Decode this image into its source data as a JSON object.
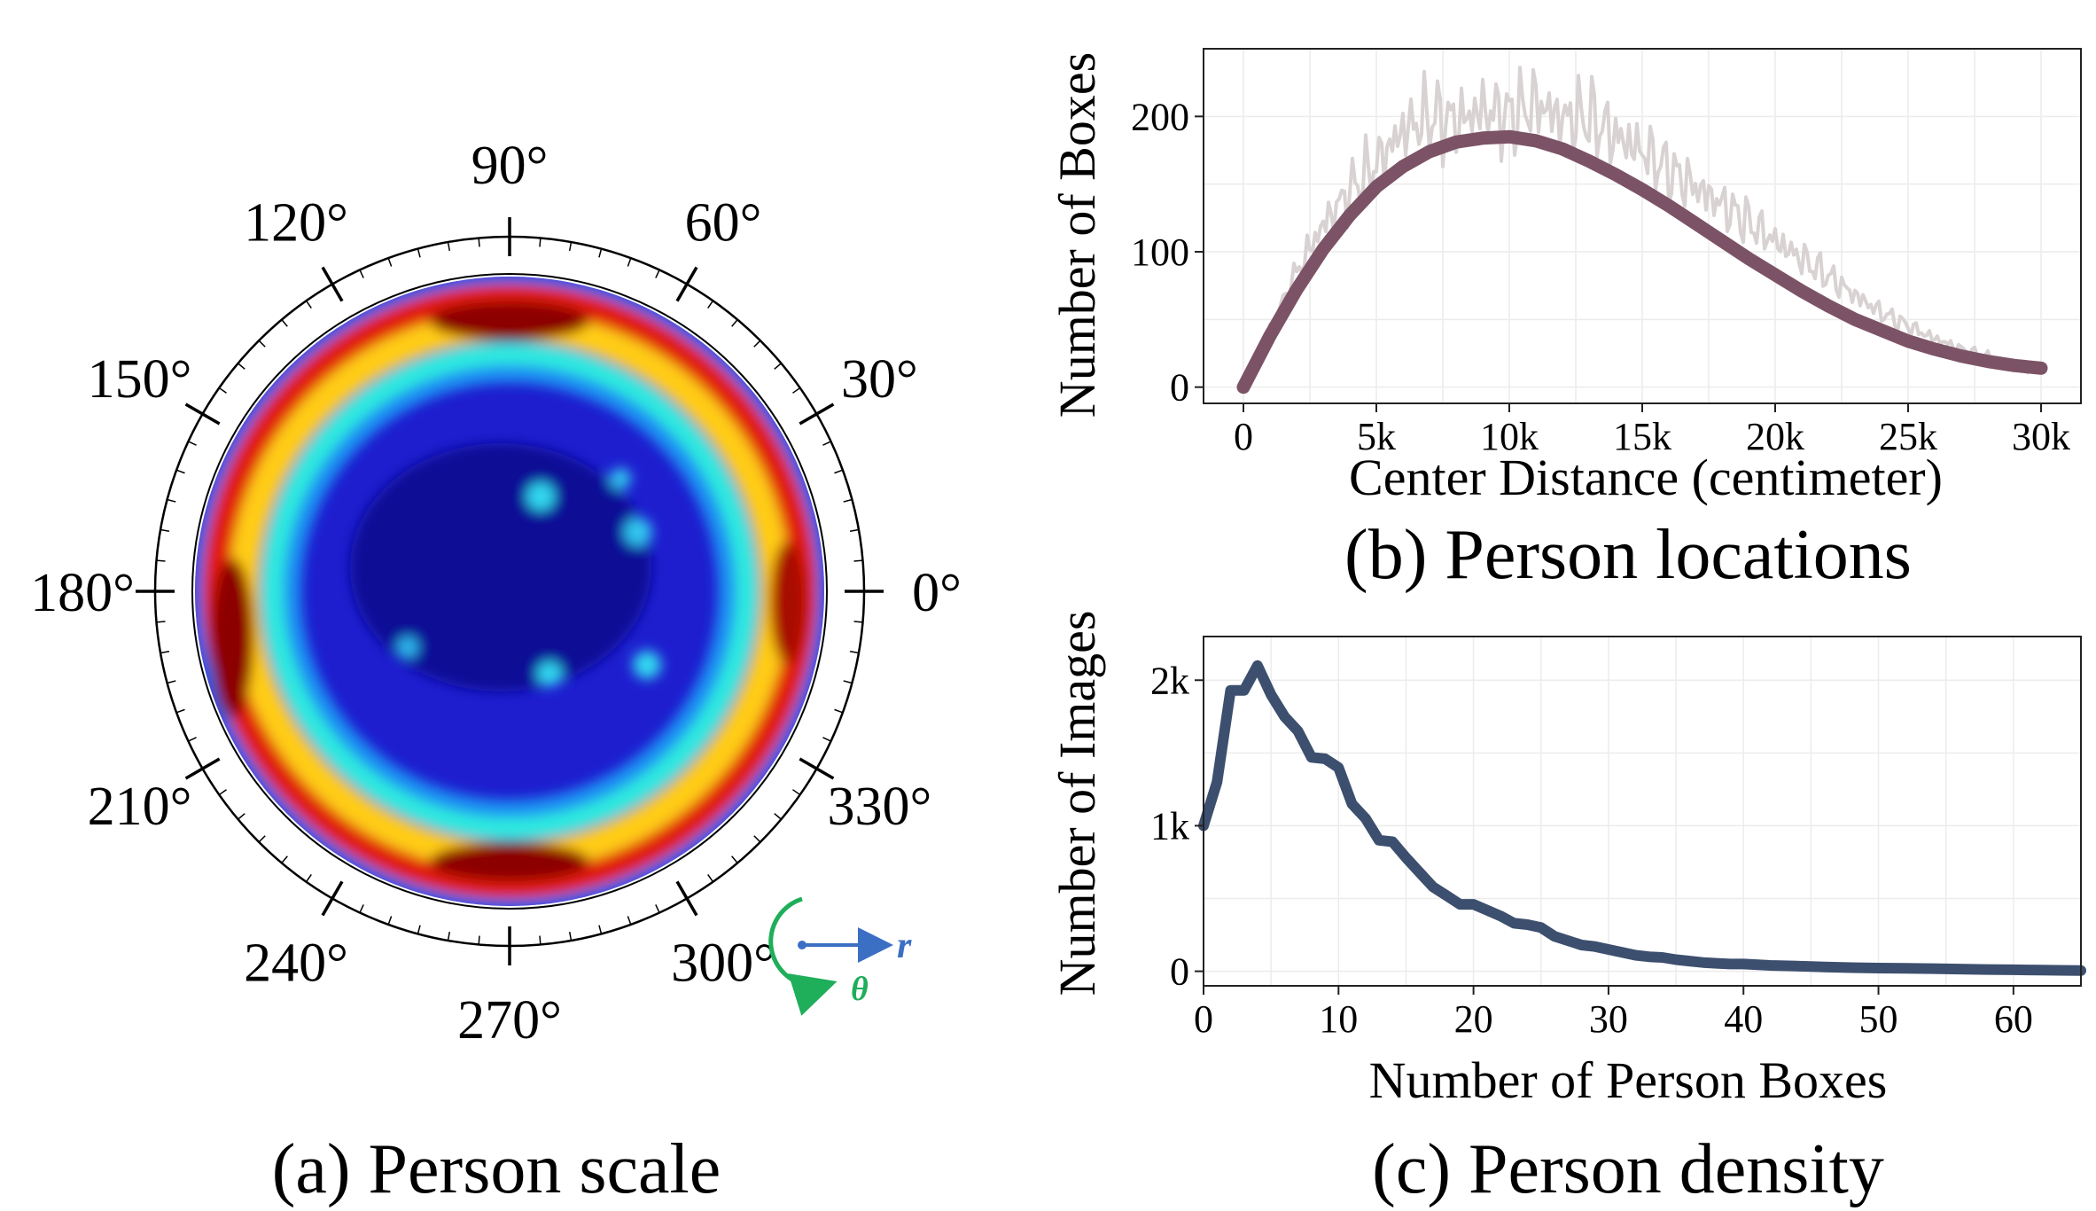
{
  "figure": {
    "captions": {
      "a": "(a) Person scale",
      "b": "(b) Person locations",
      "c": "(c) Person density"
    }
  },
  "chart_data": [
    {
      "id": "a",
      "type": "heatmap",
      "projection": "polar",
      "description_colormap": "jet",
      "angle_labels": [
        "0°",
        "30°",
        "60°",
        "90°",
        "120°",
        "150°",
        "180°",
        "210°",
        "240°",
        "270°",
        "300°",
        "330°"
      ],
      "angle_values": [
        0,
        30,
        60,
        90,
        120,
        150,
        180,
        210,
        240,
        270,
        300,
        330
      ],
      "legend": {
        "radial_label": "r",
        "angular_label": "θ",
        "radial_color": "#3b6fc4",
        "angular_color": "#1fae5a"
      }
    },
    {
      "id": "b",
      "type": "line",
      "xlabel": "Center Distance (centimeter)",
      "ylabel": "Number of Boxes",
      "xlim": [
        -1500,
        31500
      ],
      "ylim": [
        -12,
        250
      ],
      "xticks": [
        0,
        5000,
        10000,
        15000,
        20000,
        25000,
        30000
      ],
      "xtick_labels": [
        "0",
        "5k",
        "10k",
        "15k",
        "20k",
        "25k",
        "30k"
      ],
      "yticks": [
        0,
        100,
        200
      ],
      "ytick_labels": [
        "0",
        "100",
        "200"
      ],
      "grid": true,
      "series": [
        {
          "role": "raw-histogram",
          "color": "#d9d2d2",
          "x": [
            0,
            1000,
            2000,
            3000,
            4000,
            5000,
            6000,
            7000,
            8000,
            9000,
            10000,
            11000,
            12000,
            13000,
            14000,
            15000,
            16000,
            17000,
            18000,
            19000,
            20000,
            21000,
            22000,
            23000,
            24000,
            25000,
            26000,
            27000,
            28000,
            29000,
            30000
          ],
          "values": [
            0,
            40,
            85,
            120,
            145,
            165,
            190,
            200,
            196,
            205,
            200,
            210,
            198,
            200,
            185,
            175,
            160,
            148,
            135,
            122,
            108,
            95,
            82,
            68,
            55,
            45,
            36,
            28,
            22,
            16,
            12
          ]
        },
        {
          "role": "fitted-curve",
          "color": "#7c5366",
          "x": [
            0,
            1000,
            2000,
            3000,
            4000,
            5000,
            6000,
            7000,
            8000,
            9000,
            10000,
            11000,
            12000,
            13000,
            14000,
            15000,
            16000,
            17000,
            18000,
            19000,
            20000,
            21000,
            22000,
            23000,
            24000,
            25000,
            26000,
            27000,
            28000,
            29000,
            30000
          ],
          "values": [
            0,
            38,
            72,
            102,
            127,
            148,
            163,
            174,
            181,
            184,
            185,
            182,
            176,
            167,
            157,
            146,
            134,
            121,
            108,
            95,
            83,
            71,
            60,
            50,
            42,
            34,
            28,
            23,
            19,
            16,
            14
          ]
        }
      ]
    },
    {
      "id": "c",
      "type": "line",
      "xlabel": "Number of Person Boxes",
      "ylabel": "Number of Images",
      "xlim": [
        0,
        65
      ],
      "ylim": [
        -100,
        2300
      ],
      "xticks": [
        0,
        10,
        20,
        30,
        40,
        50,
        60
      ],
      "xtick_labels": [
        "0",
        "10",
        "20",
        "30",
        "40",
        "50",
        "60"
      ],
      "yticks": [
        0,
        1000,
        2000
      ],
      "ytick_labels": [
        "0",
        "1k",
        "2k"
      ],
      "grid": true,
      "series": [
        {
          "color": "#3d4f6e",
          "x": [
            0,
            1,
            2,
            3,
            4,
            5,
            6,
            7,
            8,
            9,
            10,
            11,
            12,
            13,
            14,
            15,
            16,
            17,
            18,
            19,
            20,
            21,
            22,
            23,
            24,
            25,
            26,
            27,
            28,
            29,
            30,
            31,
            32,
            33,
            34,
            35,
            36,
            37,
            38,
            39,
            40,
            42,
            44,
            46,
            48,
            50,
            52,
            54,
            56,
            58,
            60,
            62,
            64,
            65
          ],
          "values": [
            1000,
            1300,
            1930,
            1930,
            2100,
            1900,
            1750,
            1650,
            1470,
            1460,
            1400,
            1150,
            1050,
            900,
            890,
            780,
            680,
            580,
            520,
            460,
            460,
            420,
            380,
            330,
            320,
            300,
            240,
            210,
            180,
            170,
            150,
            130,
            110,
            100,
            95,
            80,
            70,
            60,
            55,
            50,
            50,
            40,
            35,
            30,
            25,
            22,
            20,
            18,
            15,
            12,
            10,
            8,
            6,
            5
          ]
        }
      ]
    }
  ]
}
